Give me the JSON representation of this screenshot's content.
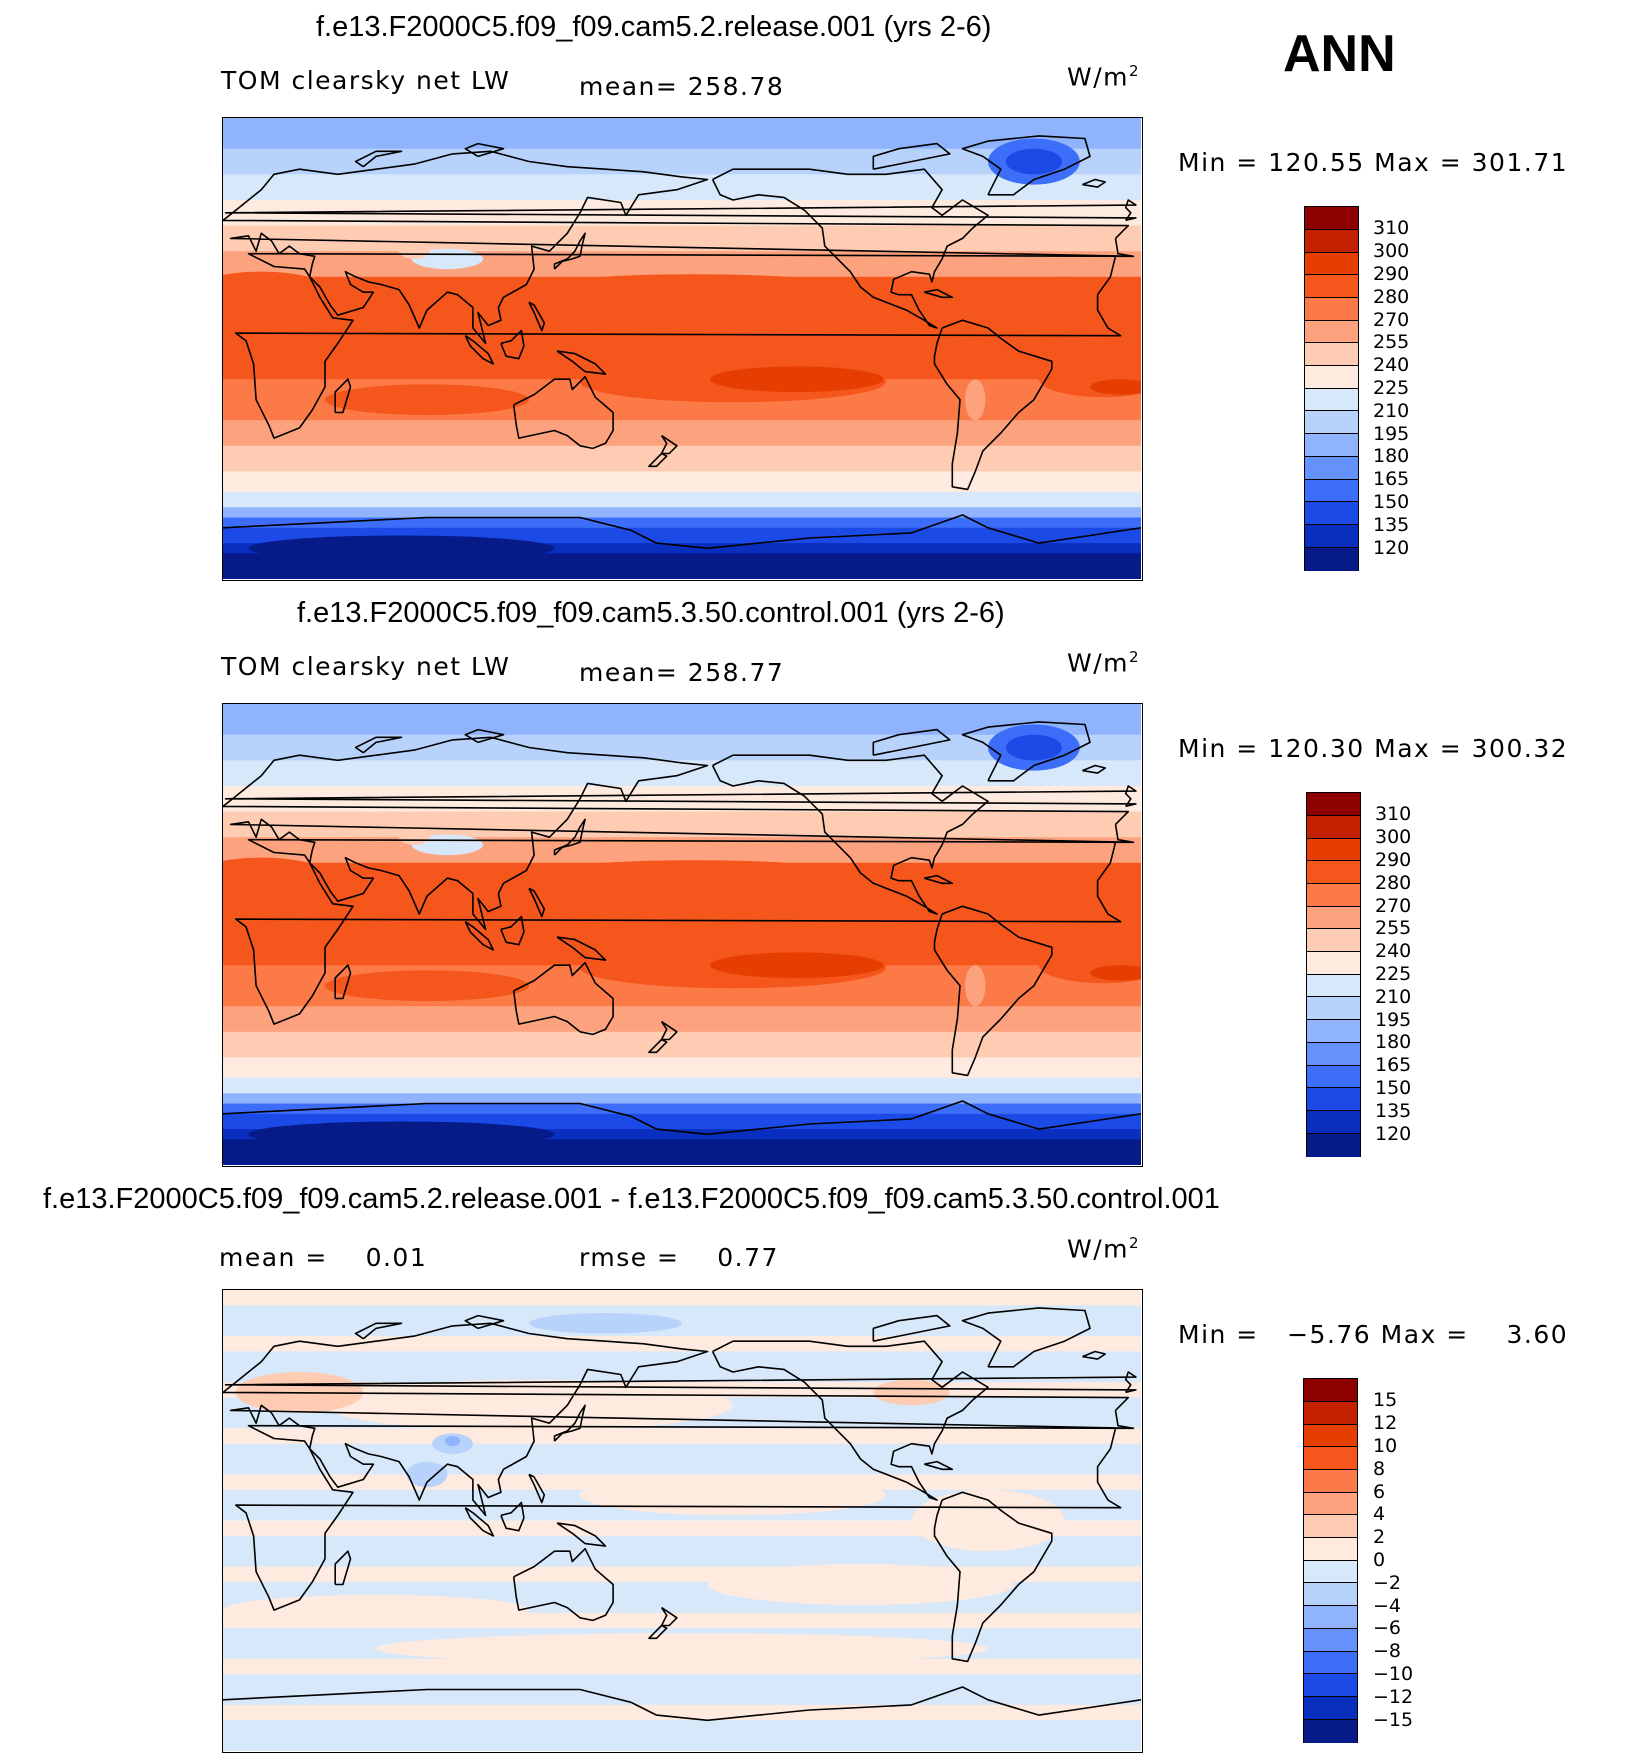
{
  "season": "ANN",
  "panels": [
    {
      "id": "p1",
      "title": "f.e13.F2000C5.f09_f09.cam5.2.release.001 (yrs 2-6)",
      "variable": "TOM clearsky net LW",
      "stat1": "mean= 258.78",
      "stat2": "",
      "units_base": "W/m",
      "units_exp": "2",
      "minmax": "Min = 120.55 Max = 301.71",
      "colorbar": {
        "labels": [
          "310",
          "300",
          "290",
          "280",
          "270",
          "255",
          "240",
          "225",
          "210",
          "195",
          "180",
          "165",
          "150",
          "135",
          "120"
        ],
        "colors": [
          "#8c0000",
          "#c42100",
          "#e63d00",
          "#f5561c",
          "#fb7a47",
          "#fca27f",
          "#fdccb2",
          "#feeade",
          "#d6e8fa",
          "#b8d3fb",
          "#8fb4fd",
          "#6591fd",
          "#3d6ef9",
          "#1b4ae6",
          "#0a2fbe",
          "#061a88"
        ]
      },
      "color_scale": "absolute"
    },
    {
      "id": "p2",
      "title": "f.e13.F2000C5.f09_f09.cam5.3.50.control.001 (yrs 2-6)",
      "variable": "TOM clearsky net LW",
      "stat1": "mean= 258.77",
      "stat2": "",
      "units_base": "W/m",
      "units_exp": "2",
      "minmax": "Min = 120.30 Max = 300.32",
      "colorbar": {
        "labels": [
          "310",
          "300",
          "290",
          "280",
          "270",
          "255",
          "240",
          "225",
          "210",
          "195",
          "180",
          "165",
          "150",
          "135",
          "120"
        ],
        "colors": [
          "#8c0000",
          "#c42100",
          "#e63d00",
          "#f5561c",
          "#fb7a47",
          "#fca27f",
          "#fdccb2",
          "#feeade",
          "#d6e8fa",
          "#b8d3fb",
          "#8fb4fd",
          "#6591fd",
          "#3d6ef9",
          "#1b4ae6",
          "#0a2fbe",
          "#061a88"
        ]
      },
      "color_scale": "absolute"
    },
    {
      "id": "p3",
      "title": "f.e13.F2000C5.f09_f09.cam5.2.release.001 - f.e13.F2000C5.f09_f09.cam5.3.50.control.001",
      "variable": "",
      "stat1": "mean =    0.01",
      "stat2": "rmse =    0.77",
      "units_base": "W/m",
      "units_exp": "2",
      "minmax": "Min =   −5.76 Max =    3.60",
      "colorbar": {
        "labels": [
          "15",
          "12",
          "10",
          "8",
          "6",
          "4",
          "2",
          "0",
          "−2",
          "−4",
          "−6",
          "−8",
          "−10",
          "−12",
          "−15"
        ],
        "colors": [
          "#8c0000",
          "#c42100",
          "#e63d00",
          "#f5561c",
          "#fb7a47",
          "#fca27f",
          "#fdccb2",
          "#feeade",
          "#d6e8fa",
          "#b8d3fb",
          "#8fb4fd",
          "#6591fd",
          "#3d6ef9",
          "#1b4ae6",
          "#0a2fbe",
          "#061a88"
        ]
      },
      "color_scale": "difference"
    }
  ]
}
